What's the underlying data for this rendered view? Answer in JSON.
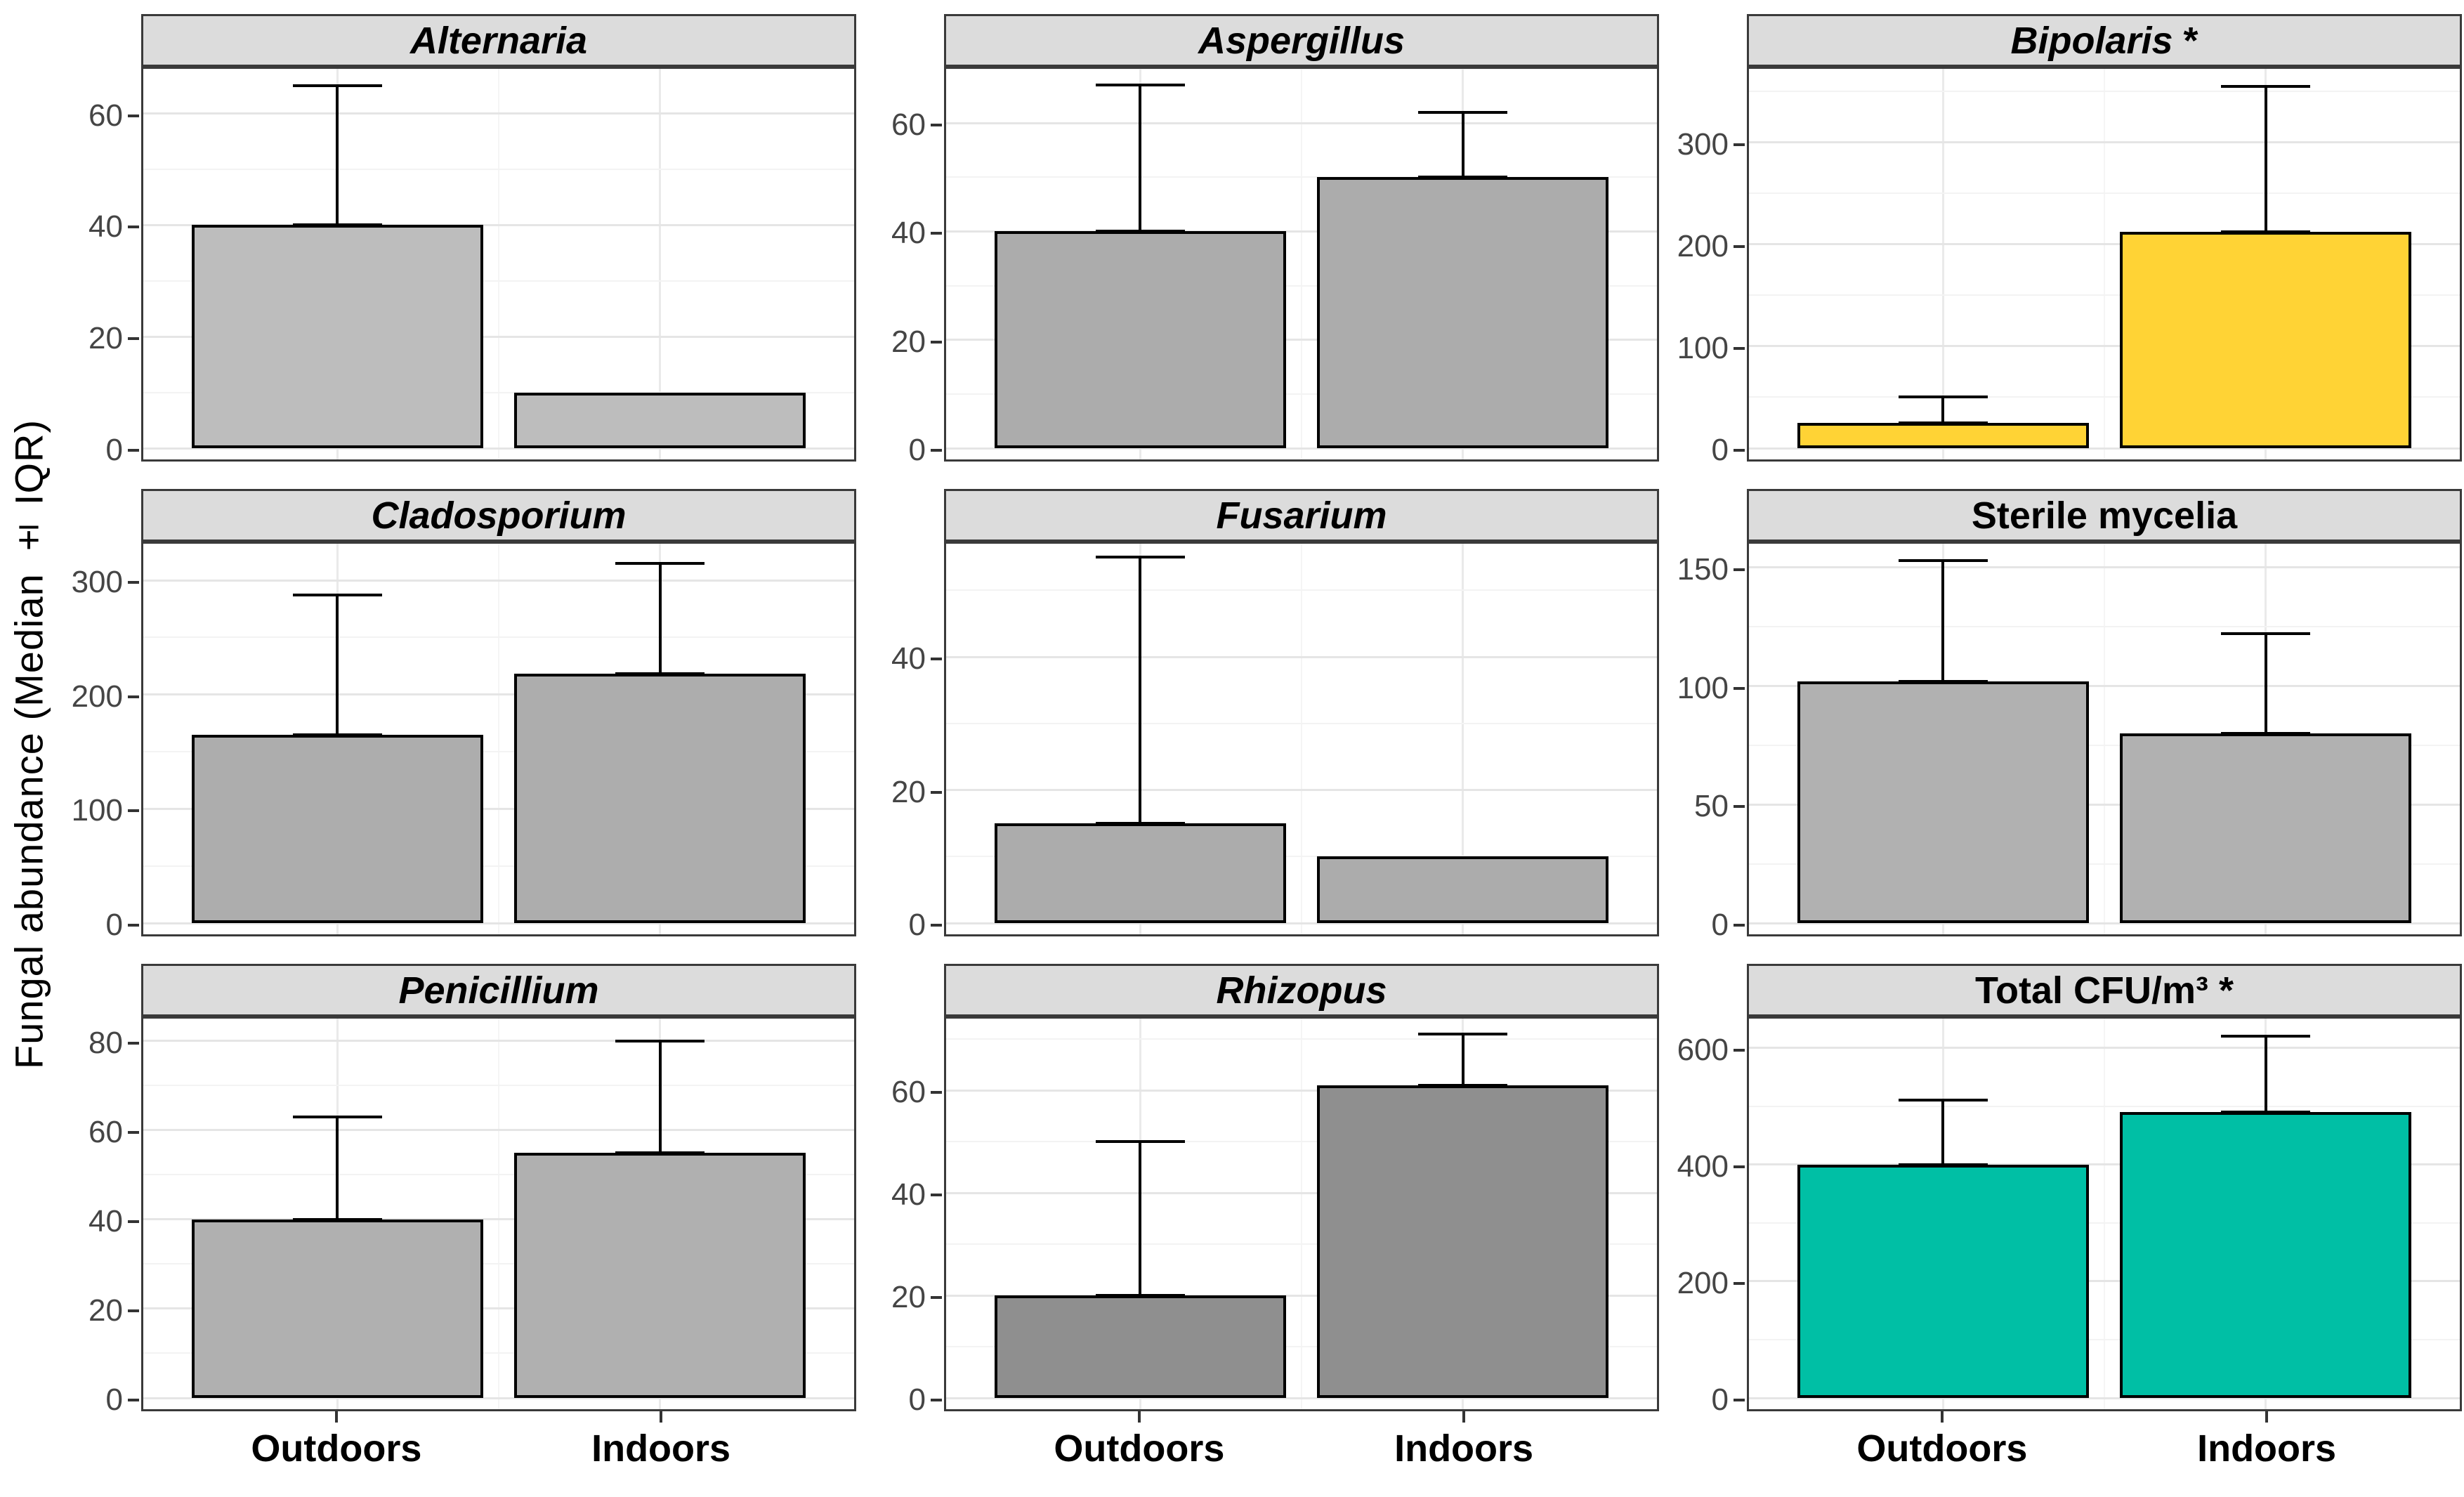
{
  "figure": {
    "y_axis_title": "Fungal abundance (Median ± IQR)",
    "x_categories": [
      "Outdoors",
      "Indoors"
    ],
    "colors": {
      "strip_bg": "#DCDCDC",
      "panel_border": "#3A3A3A",
      "grid_major": "#E5E5E5",
      "grid_minor": "#F3F3F3",
      "bar_stroke": "#000000",
      "gray_bar": "#ADADAD",
      "yellow_bar": "#FFD335",
      "teal_bar": "#00BFA5",
      "tick_text": "#454545"
    }
  },
  "chart_data": [
    {
      "type": "bar",
      "label": "Alternaria",
      "suffix": "",
      "italic": true,
      "categories": [
        "Outdoors",
        "Indoors"
      ],
      "values": [
        40,
        10
      ],
      "iqr_upper": [
        65,
        null
      ],
      "yticks": [
        0,
        20,
        40,
        60
      ],
      "ylim": [
        0,
        68
      ],
      "bar_fill": "#BDBDBD"
    },
    {
      "type": "bar",
      "label": "Aspergillus",
      "suffix": "",
      "italic": true,
      "categories": [
        "Outdoors",
        "Indoors"
      ],
      "values": [
        40,
        50
      ],
      "iqr_upper": [
        67,
        62
      ],
      "yticks": [
        0,
        20,
        40,
        60
      ],
      "ylim": [
        0,
        70
      ],
      "bar_fill": "#ACACAC"
    },
    {
      "type": "bar",
      "label": "Bipolaris",
      "suffix": " *",
      "italic": true,
      "categories": [
        "Outdoors",
        "Indoors"
      ],
      "values": [
        25,
        212
      ],
      "iqr_upper": [
        50,
        355
      ],
      "yticks": [
        0,
        100,
        200,
        300
      ],
      "ylim": [
        0,
        372
      ],
      "bar_fill": "#FFD335"
    },
    {
      "type": "bar",
      "label": "Cladosporium",
      "suffix": "",
      "italic": true,
      "categories": [
        "Outdoors",
        "Indoors"
      ],
      "values": [
        165,
        218
      ],
      "iqr_upper": [
        287,
        315
      ],
      "yticks": [
        0,
        100,
        200,
        300
      ],
      "ylim": [
        0,
        332
      ],
      "bar_fill": "#ADADAD"
    },
    {
      "type": "bar",
      "label": "Fusarium",
      "suffix": "",
      "italic": true,
      "categories": [
        "Outdoors",
        "Indoors"
      ],
      "values": [
        15,
        10
      ],
      "iqr_upper": [
        55,
        null
      ],
      "yticks": [
        0,
        20,
        40
      ],
      "ylim": [
        0,
        57
      ],
      "bar_fill": "#ACACAC"
    },
    {
      "type": "bar",
      "label": "Sterile mycelia",
      "suffix": "",
      "italic": false,
      "categories": [
        "Outdoors",
        "Indoors"
      ],
      "values": [
        102,
        80
      ],
      "iqr_upper": [
        153,
        122
      ],
      "yticks": [
        0,
        50,
        100,
        150
      ],
      "ylim": [
        0,
        160
      ],
      "bar_fill": "#B1B1B1"
    },
    {
      "type": "bar",
      "label": "Penicillium",
      "suffix": "",
      "italic": true,
      "categories": [
        "Outdoors",
        "Indoors"
      ],
      "values": [
        40,
        55
      ],
      "iqr_upper": [
        63,
        80
      ],
      "yticks": [
        0,
        20,
        40,
        60,
        80
      ],
      "ylim": [
        0,
        85
      ],
      "bar_fill": "#B0B0B0"
    },
    {
      "type": "bar",
      "label": "Rhizopus",
      "suffix": "",
      "italic": true,
      "categories": [
        "Outdoors",
        "Indoors"
      ],
      "values": [
        20,
        61
      ],
      "iqr_upper": [
        50,
        71
      ],
      "yticks": [
        0,
        20,
        40,
        60
      ],
      "ylim": [
        0,
        74
      ],
      "bar_fill": "#8F8F8F"
    },
    {
      "type": "bar",
      "label": "Total CFU/m³",
      "suffix": " *",
      "italic": false,
      "categories": [
        "Outdoors",
        "Indoors"
      ],
      "values": [
        400,
        490
      ],
      "iqr_upper": [
        510,
        620
      ],
      "yticks": [
        0,
        200,
        400,
        600
      ],
      "ylim": [
        0,
        650
      ],
      "bar_fill": "#00BFA5"
    }
  ]
}
